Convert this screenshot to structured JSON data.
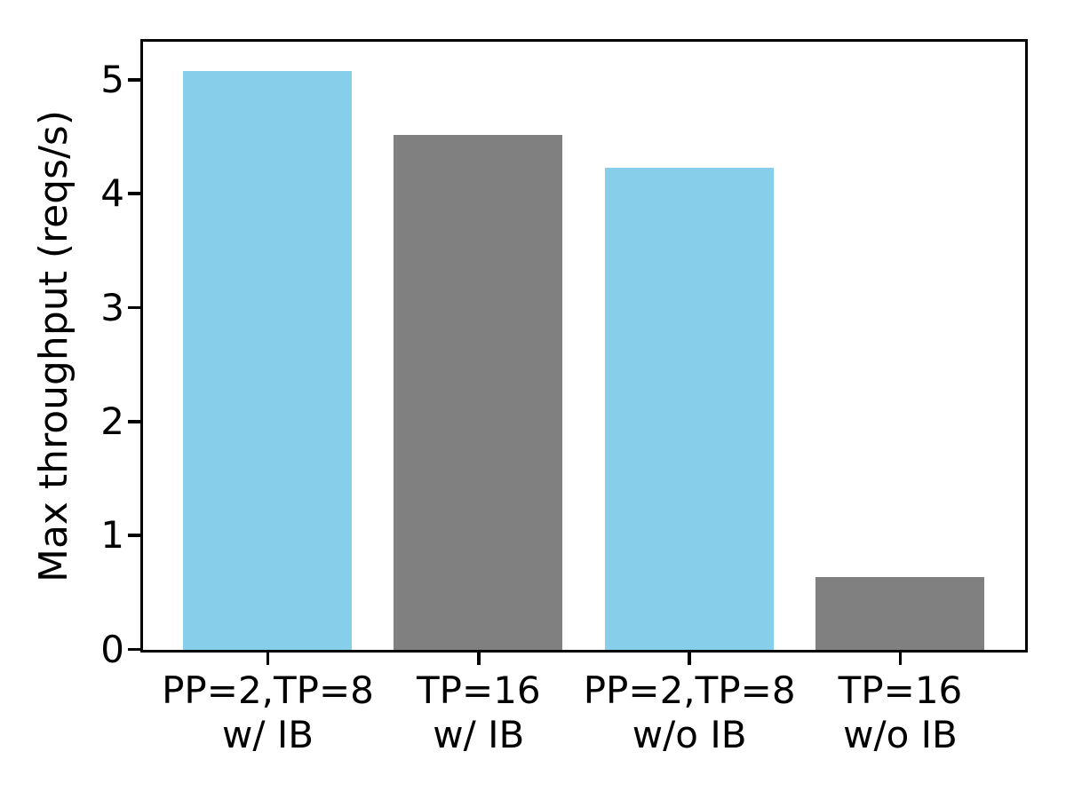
{
  "chart_data": {
    "type": "bar",
    "title": "",
    "xlabel": "",
    "ylabel": "Max throughput (reqs/s)",
    "categories": [
      "PP=2,TP=8\nw/ IB",
      "TP=16\nw/ IB",
      "PP=2,TP=8\nw/o IB",
      "TP=16\nw/o IB"
    ],
    "values": [
      5.08,
      4.52,
      4.23,
      0.64
    ],
    "bar_colors": [
      "#87CEEB",
      "#808080",
      "#87CEEB",
      "#808080"
    ],
    "ylim": [
      0,
      5.33
    ],
    "xlim": [
      -0.59,
      3.59
    ],
    "yticks": [
      0,
      1,
      2,
      3,
      4,
      5
    ],
    "bar_width_units": 0.8,
    "grid": false,
    "legend": null,
    "spine_color": "#000000",
    "background_color": "#ffffff"
  }
}
